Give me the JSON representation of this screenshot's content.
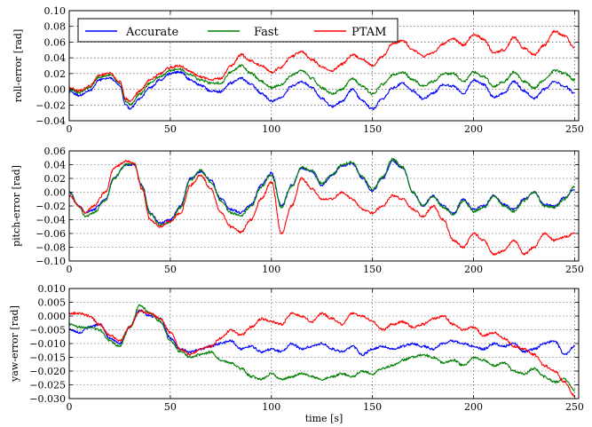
{
  "colors": {
    "Accurate": "#0000ff",
    "Fast": "#007f00",
    "PTAM": "#ff0000"
  },
  "chart_data": [
    {
      "type": "line",
      "ylabel": "roll-error [rad]",
      "xlabel": "",
      "xlim": [
        0,
        252
      ],
      "ylim": [
        -0.04,
        0.1
      ],
      "xticks": [
        "0",
        "50",
        "100",
        "150",
        "200",
        "250"
      ],
      "yticks": [
        "−0.04",
        "−0.02",
        "0.00",
        "0.02",
        "0.04",
        "0.06",
        "0.08",
        "0.10"
      ],
      "grid": true,
      "legend": {
        "placement": "top-left",
        "entries": [
          "Accurate",
          "Fast",
          "PTAM"
        ]
      },
      "x": [
        0,
        5,
        10,
        15,
        20,
        25,
        28,
        30,
        35,
        40,
        45,
        50,
        55,
        60,
        65,
        70,
        75,
        80,
        85,
        90,
        95,
        100,
        105,
        110,
        115,
        120,
        125,
        130,
        135,
        140,
        145,
        150,
        155,
        160,
        165,
        170,
        175,
        180,
        185,
        190,
        195,
        200,
        205,
        210,
        215,
        220,
        225,
        230,
        235,
        240,
        245,
        250
      ],
      "series": [
        {
          "name": "Accurate",
          "values": [
            -0.003,
            -0.008,
            -0.002,
            0.012,
            0.015,
            0.005,
            -0.02,
            -0.025,
            -0.012,
            0.002,
            0.012,
            0.02,
            0.022,
            0.012,
            0.005,
            -0.002,
            -0.003,
            0.008,
            0.014,
            0.006,
            -0.005,
            -0.015,
            -0.01,
            0.004,
            0.01,
            0.002,
            -0.012,
            -0.022,
            -0.015,
            0.0,
            -0.015,
            -0.025,
            -0.012,
            0.002,
            0.008,
            -0.002,
            -0.012,
            -0.005,
            0.006,
            0.004,
            -0.006,
            0.012,
            0.006,
            -0.01,
            -0.005,
            0.01,
            -0.002,
            -0.012,
            0.0,
            0.01,
            0.004,
            -0.005
          ]
        },
        {
          "name": "Fast",
          "values": [
            0.0,
            -0.004,
            0.002,
            0.016,
            0.018,
            0.008,
            -0.015,
            -0.02,
            -0.006,
            0.008,
            0.016,
            0.024,
            0.026,
            0.018,
            0.012,
            0.008,
            0.008,
            0.022,
            0.03,
            0.02,
            0.01,
            0.002,
            0.006,
            0.018,
            0.024,
            0.014,
            0.002,
            -0.006,
            0.0,
            0.014,
            0.004,
            -0.006,
            0.006,
            0.018,
            0.022,
            0.012,
            0.004,
            0.01,
            0.02,
            0.02,
            0.01,
            0.022,
            0.016,
            0.004,
            0.01,
            0.022,
            0.01,
            0.002,
            0.012,
            0.024,
            0.02,
            0.012
          ]
        },
        {
          "name": "PTAM",
          "values": [
            0.002,
            -0.002,
            0.004,
            0.018,
            0.02,
            0.01,
            -0.012,
            -0.016,
            -0.002,
            0.012,
            0.02,
            0.028,
            0.03,
            0.022,
            0.016,
            0.012,
            0.014,
            0.03,
            0.044,
            0.036,
            0.03,
            0.022,
            0.028,
            0.042,
            0.048,
            0.038,
            0.028,
            0.024,
            0.032,
            0.044,
            0.038,
            0.03,
            0.042,
            0.058,
            0.062,
            0.05,
            0.042,
            0.046,
            0.058,
            0.064,
            0.056,
            0.07,
            0.064,
            0.046,
            0.05,
            0.066,
            0.052,
            0.044,
            0.056,
            0.074,
            0.068,
            0.052
          ]
        }
      ]
    },
    {
      "type": "line",
      "ylabel": "pitch-error [rad]",
      "xlabel": "",
      "xlim": [
        0,
        252
      ],
      "ylim": [
        -0.1,
        0.06
      ],
      "xticks": [
        "0",
        "50",
        "100",
        "150",
        "200",
        "250"
      ],
      "yticks": [
        "−0.10",
        "−0.08",
        "−0.06",
        "−0.04",
        "−0.02",
        "0.00",
        "0.02",
        "0.04",
        "0.06"
      ],
      "grid": true,
      "x": [
        0,
        5,
        8,
        12,
        18,
        22,
        28,
        32,
        36,
        40,
        45,
        50,
        55,
        60,
        65,
        70,
        75,
        80,
        85,
        90,
        95,
        100,
        105,
        110,
        115,
        120,
        125,
        130,
        135,
        140,
        145,
        150,
        155,
        160,
        165,
        170,
        175,
        180,
        185,
        190,
        195,
        200,
        205,
        210,
        215,
        220,
        225,
        230,
        235,
        240,
        245,
        250
      ],
      "series": [
        {
          "name": "Accurate",
          "values": [
            0.0,
            -0.02,
            -0.03,
            -0.025,
            -0.01,
            0.02,
            0.04,
            0.04,
            0.01,
            -0.03,
            -0.045,
            -0.04,
            -0.02,
            0.02,
            0.03,
            0.018,
            -0.01,
            -0.025,
            -0.03,
            -0.018,
            0.01,
            0.028,
            -0.02,
            0.01,
            0.035,
            0.03,
            0.01,
            0.025,
            0.038,
            0.042,
            0.02,
            0.002,
            0.02,
            0.045,
            0.035,
            0.0,
            -0.02,
            -0.005,
            -0.02,
            -0.03,
            -0.01,
            -0.025,
            -0.02,
            -0.005,
            -0.018,
            -0.025,
            -0.01,
            0.0,
            -0.018,
            -0.02,
            -0.008,
            0.005
          ]
        },
        {
          "name": "Fast",
          "values": [
            0.0,
            -0.022,
            -0.035,
            -0.03,
            -0.012,
            0.02,
            0.04,
            0.042,
            0.008,
            -0.032,
            -0.048,
            -0.043,
            -0.022,
            0.018,
            0.032,
            0.015,
            -0.012,
            -0.03,
            -0.034,
            -0.02,
            0.008,
            0.026,
            -0.022,
            0.008,
            0.036,
            0.032,
            0.012,
            0.026,
            0.04,
            0.044,
            0.022,
            0.004,
            0.022,
            0.048,
            0.036,
            0.0,
            -0.02,
            -0.006,
            -0.022,
            -0.032,
            -0.012,
            -0.028,
            -0.022,
            -0.006,
            -0.02,
            -0.028,
            -0.012,
            0.0,
            -0.02,
            -0.022,
            -0.01,
            0.008
          ]
        },
        {
          "name": "PTAM",
          "values": [
            -0.005,
            -0.02,
            -0.03,
            -0.02,
            0.0,
            0.035,
            0.045,
            0.042,
            0.005,
            -0.04,
            -0.05,
            -0.042,
            -0.03,
            0.01,
            0.025,
            0.005,
            -0.03,
            -0.05,
            -0.058,
            -0.04,
            -0.01,
            0.015,
            -0.06,
            -0.02,
            0.02,
            0.005,
            -0.01,
            -0.01,
            0.0,
            -0.01,
            -0.025,
            -0.03,
            -0.02,
            -0.005,
            -0.01,
            -0.025,
            -0.035,
            -0.02,
            -0.04,
            -0.07,
            -0.08,
            -0.06,
            -0.07,
            -0.09,
            -0.085,
            -0.07,
            -0.09,
            -0.08,
            -0.06,
            -0.07,
            -0.065,
            -0.06
          ]
        }
      ]
    },
    {
      "type": "line",
      "ylabel": "yaw-error [rad]",
      "xlabel": "time [s]",
      "xlim": [
        0,
        252
      ],
      "ylim": [
        -0.03,
        0.01
      ],
      "xticks": [
        "0",
        "50",
        "100",
        "150",
        "200",
        "250"
      ],
      "yticks": [
        "−0.030",
        "−0.025",
        "−0.020",
        "−0.015",
        "−0.010",
        "−0.005",
        "0.000",
        "0.005",
        "0.010"
      ],
      "grid": true,
      "x": [
        0,
        5,
        10,
        15,
        20,
        25,
        30,
        35,
        40,
        45,
        50,
        55,
        60,
        65,
        70,
        75,
        80,
        85,
        90,
        95,
        100,
        105,
        110,
        115,
        120,
        125,
        130,
        135,
        140,
        145,
        150,
        155,
        160,
        165,
        170,
        175,
        180,
        185,
        190,
        195,
        200,
        205,
        210,
        215,
        220,
        225,
        230,
        235,
        240,
        245,
        250
      ],
      "series": [
        {
          "name": "Accurate",
          "values": [
            -0.005,
            -0.006,
            -0.004,
            -0.003,
            -0.008,
            -0.01,
            -0.004,
            0.002,
            0.0,
            -0.001,
            -0.008,
            -0.012,
            -0.013,
            -0.012,
            -0.011,
            -0.01,
            -0.009,
            -0.012,
            -0.011,
            -0.013,
            -0.012,
            -0.013,
            -0.01,
            -0.012,
            -0.011,
            -0.01,
            -0.012,
            -0.013,
            -0.011,
            -0.014,
            -0.012,
            -0.011,
            -0.012,
            -0.011,
            -0.01,
            -0.011,
            -0.012,
            -0.01,
            -0.009,
            -0.01,
            -0.011,
            -0.012,
            -0.01,
            -0.011,
            -0.01,
            -0.013,
            -0.012,
            -0.01,
            -0.009,
            -0.014,
            -0.011
          ]
        },
        {
          "name": "Fast",
          "values": [
            -0.003,
            -0.004,
            -0.004,
            -0.005,
            -0.009,
            -0.011,
            -0.004,
            0.004,
            0.001,
            -0.002,
            -0.009,
            -0.013,
            -0.015,
            -0.014,
            -0.013,
            -0.016,
            -0.017,
            -0.019,
            -0.022,
            -0.023,
            -0.021,
            -0.023,
            -0.022,
            -0.021,
            -0.022,
            -0.023,
            -0.022,
            -0.021,
            -0.022,
            -0.02,
            -0.021,
            -0.019,
            -0.018,
            -0.016,
            -0.015,
            -0.014,
            -0.015,
            -0.017,
            -0.016,
            -0.018,
            -0.015,
            -0.016,
            -0.018,
            -0.017,
            -0.02,
            -0.021,
            -0.019,
            -0.022,
            -0.024,
            -0.023,
            -0.027
          ]
        },
        {
          "name": "PTAM",
          "values": [
            0.001,
            0.001,
            0.0,
            -0.003,
            -0.007,
            -0.009,
            -0.004,
            0.002,
            0.001,
            -0.001,
            -0.006,
            -0.012,
            -0.014,
            -0.012,
            -0.011,
            -0.008,
            -0.005,
            -0.007,
            -0.004,
            -0.001,
            -0.002,
            -0.003,
            0.001,
            0.0,
            -0.002,
            0.001,
            -0.001,
            -0.003,
            0.001,
            0.0,
            -0.002,
            -0.005,
            -0.003,
            -0.002,
            -0.004,
            -0.003,
            -0.001,
            0.0,
            -0.003,
            -0.005,
            -0.004,
            -0.007,
            -0.006,
            -0.008,
            -0.011,
            -0.012,
            -0.014,
            -0.018,
            -0.02,
            -0.024,
            -0.029
          ]
        }
      ]
    }
  ]
}
